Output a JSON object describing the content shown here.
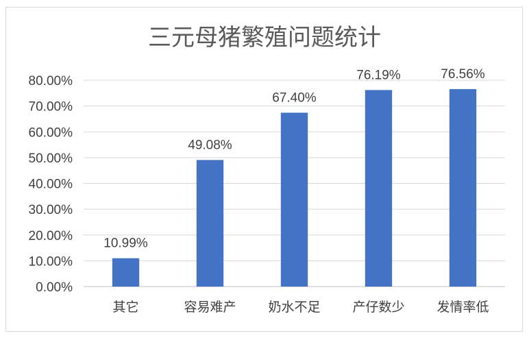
{
  "chart_data": {
    "type": "bar",
    "title": "三元母猪繁殖问题统计",
    "categories": [
      "其它",
      "容易难产",
      "奶水不足",
      "产仔数少",
      "发情率低"
    ],
    "values": [
      10.99,
      49.08,
      67.4,
      76.19,
      76.56
    ],
    "data_labels": [
      "10.99%",
      "49.08%",
      "67.40%",
      "76.19%",
      "76.56%"
    ],
    "y_ticks": [
      "0.00%",
      "10.00%",
      "20.00%",
      "30.00%",
      "40.00%",
      "50.00%",
      "60.00%",
      "70.00%",
      "80.00%"
    ],
    "ylim": [
      0,
      80
    ],
    "grid": true,
    "legend": "none",
    "bar_color": "#4472C4"
  }
}
